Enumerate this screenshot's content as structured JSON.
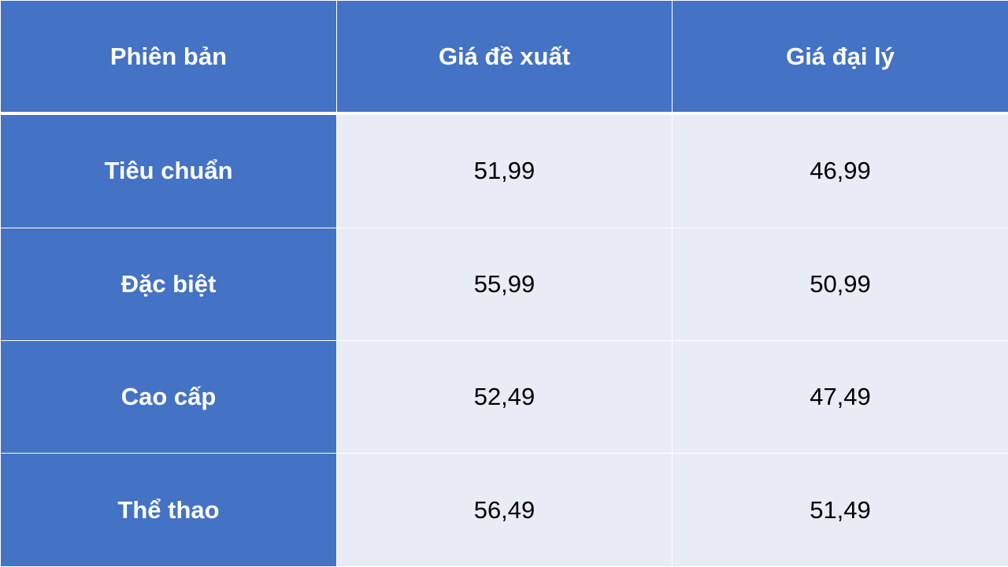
{
  "table": {
    "headers": [
      "Phiên bản",
      "Giá đề xuất",
      "Giá đại lý"
    ],
    "rows": [
      [
        "Tiêu chuẩn",
        "51,99",
        "46,99"
      ],
      [
        "Đặc biệt",
        "55,99",
        "50,99"
      ],
      [
        "Cao cấp",
        "52,49",
        "47,49"
      ],
      [
        "Thể thao",
        "56,49",
        "51,49"
      ]
    ]
  },
  "colors": {
    "header_bg": "#4472C4",
    "cell_bg": "#E9EBF5",
    "header_text": "#FFFFFF"
  }
}
